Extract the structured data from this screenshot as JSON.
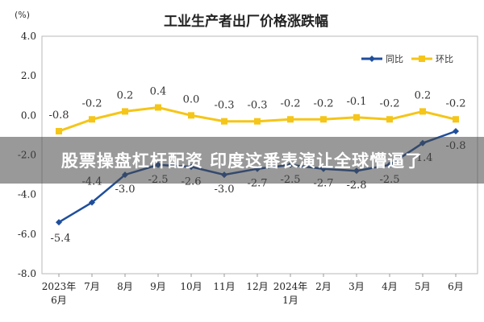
{
  "chart_data": {
    "type": "line",
    "title": "工业生产者出厂价格涨跌幅",
    "unit": "(%)",
    "ylim": [
      -8.0,
      4.0
    ],
    "yticks": [
      "4.0",
      "2.0",
      "0.0",
      "-2.0",
      "-4.0",
      "-6.0",
      "-8.0"
    ],
    "categories": [
      [
        "2023年",
        "6月"
      ],
      [
        "7月"
      ],
      [
        "8月"
      ],
      [
        "9月"
      ],
      [
        "10月"
      ],
      [
        "11月"
      ],
      [
        "12月"
      ],
      [
        "2024年",
        "1月"
      ],
      [
        "2月"
      ],
      [
        "3月"
      ],
      [
        "4月"
      ],
      [
        "5月"
      ],
      [
        "6月"
      ]
    ],
    "series": [
      {
        "name": "同比",
        "color": "#1f4e9c",
        "values": [
          -5.4,
          -4.4,
          -3.0,
          -2.5,
          -2.6,
          -3.0,
          -2.7,
          -2.5,
          -2.7,
          -2.8,
          -2.5,
          -1.4,
          -0.8
        ],
        "labels": [
          "-5.4",
          "-4.4",
          "-3.0",
          "-2.5",
          "-2.6",
          "-3.0",
          "-2.7",
          "-2.5",
          "-2.7",
          "-2.8",
          "-2.5",
          "-1.4",
          "-0.8"
        ]
      },
      {
        "name": "环比",
        "color": "#f5c518",
        "values": [
          -0.8,
          -0.2,
          0.2,
          0.4,
          0.0,
          -0.3,
          -0.3,
          -0.2,
          -0.2,
          -0.1,
          -0.2,
          0.2,
          -0.2
        ],
        "labels": [
          "-0.8",
          "-0.2",
          "0.2",
          "0.4",
          "0.0",
          "-0.3",
          "-0.3",
          "-0.2",
          "-0.2",
          "-0.1",
          "-0.2",
          "0.2",
          "-0.2"
        ]
      }
    ],
    "legend": "top-right",
    "grid": false
  },
  "banner": {
    "text": "股票操盘杠杆配资 印度这番表演让全球懵逼了"
  }
}
